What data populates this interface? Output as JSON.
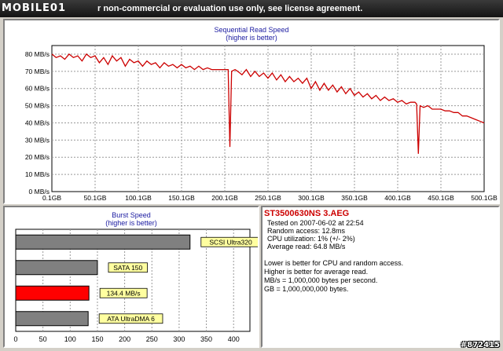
{
  "titlebar": {
    "logo_text": "MOBILE01",
    "text": "r non-commercial or evaluation use only, see license agreement."
  },
  "read_chart": {
    "chart_data": {
      "type": "line",
      "title": "Sequential Read Speed",
      "subtitle": "(higher is better)",
      "x_ticks": [
        "0.1GB",
        "50.1GB",
        "100.1GB",
        "150.1GB",
        "200.1GB",
        "250.1GB",
        "300.1GB",
        "350.1GB",
        "400.1GB",
        "450.1GB",
        "500.1GB"
      ],
      "y_ticks": [
        "0 MB/s",
        "10 MB/s",
        "20 MB/s",
        "30 MB/s",
        "40 MB/s",
        "50 MB/s",
        "60 MB/s",
        "70 MB/s",
        "80 MB/s"
      ],
      "xlim": [
        0.1,
        500.1
      ],
      "ylim": [
        0,
        85
      ],
      "grid": true,
      "series": [
        {
          "color": "#cc0000",
          "x": [
            0.1,
            5,
            10,
            15,
            20,
            25,
            30,
            35,
            40,
            45,
            50,
            55,
            60,
            65,
            70,
            75,
            80,
            85,
            90,
            95,
            100,
            105,
            110,
            115,
            120,
            125,
            130,
            135,
            140,
            145,
            150,
            155,
            160,
            165,
            170,
            175,
            180,
            185,
            190,
            195,
            200,
            204,
            206,
            208,
            212,
            215,
            220,
            225,
            230,
            235,
            240,
            245,
            250,
            255,
            260,
            265,
            270,
            275,
            280,
            285,
            290,
            295,
            300,
            305,
            310,
            315,
            320,
            325,
            330,
            335,
            340,
            345,
            350,
            355,
            360,
            365,
            370,
            375,
            380,
            385,
            390,
            395,
            400,
            405,
            410,
            415,
            420,
            422,
            424,
            426,
            430,
            435,
            440,
            445,
            450,
            455,
            460,
            465,
            470,
            475,
            480,
            485,
            490,
            495,
            500.1
          ],
          "y": [
            80,
            78,
            79,
            77,
            80,
            78,
            79,
            76,
            80,
            78,
            79,
            75,
            78,
            74,
            79,
            76,
            78,
            73,
            77,
            75,
            76,
            73,
            76,
            74,
            75,
            72,
            75,
            73,
            74,
            72,
            74,
            72,
            73,
            71,
            73,
            71,
            72,
            71,
            71,
            71,
            71,
            71,
            26,
            70,
            71,
            70,
            68,
            71,
            67,
            70,
            67,
            69,
            66,
            69,
            65,
            68,
            64,
            67,
            64,
            66,
            63,
            66,
            60,
            64,
            59,
            63,
            59,
            62,
            58,
            61,
            57,
            60,
            56,
            58,
            55,
            57,
            54,
            56,
            53,
            55,
            53,
            54,
            52,
            53,
            51,
            52,
            52,
            51,
            22,
            50,
            49,
            50,
            48,
            48,
            48,
            47,
            47,
            46,
            46,
            44,
            44,
            43,
            42,
            41,
            40
          ]
        }
      ]
    }
  },
  "burst_chart": {
    "chart_data": {
      "type": "bar",
      "title": "Burst Speed",
      "subtitle": "(higher is better)",
      "orientation": "horizontal",
      "categories": [
        "SCSI Ultra320",
        "SATA 150",
        "134.4 MB/s",
        "ATA UltraDMA 6"
      ],
      "values": [
        320,
        150,
        134.4,
        133
      ],
      "colors": [
        "#808080",
        "#808080",
        "#ff0000",
        "#808080"
      ],
      "x_ticks": [
        "0",
        "50",
        "100",
        "150",
        "200",
        "250",
        "300",
        "350",
        "400"
      ],
      "xlim": [
        0,
        430
      ],
      "grid": true
    }
  },
  "info": {
    "title": "ST3500630NS 3.AEG",
    "tested_on": "Tested on 2007-06-02 at 22:54",
    "random_access": "Random access: 12.8ms",
    "cpu_utilization": "CPU utilization: 1% (+/- 2%)",
    "average_read": "Average read: 64.8 MB/s",
    "note1": "Lower is better for CPU and random access.",
    "note2": "Higher is better for average read.",
    "note3": "MB/s = 1,000,000 bytes per second.",
    "note4": "GB = 1,000,000,000 bytes."
  },
  "watermark": "#872415"
}
